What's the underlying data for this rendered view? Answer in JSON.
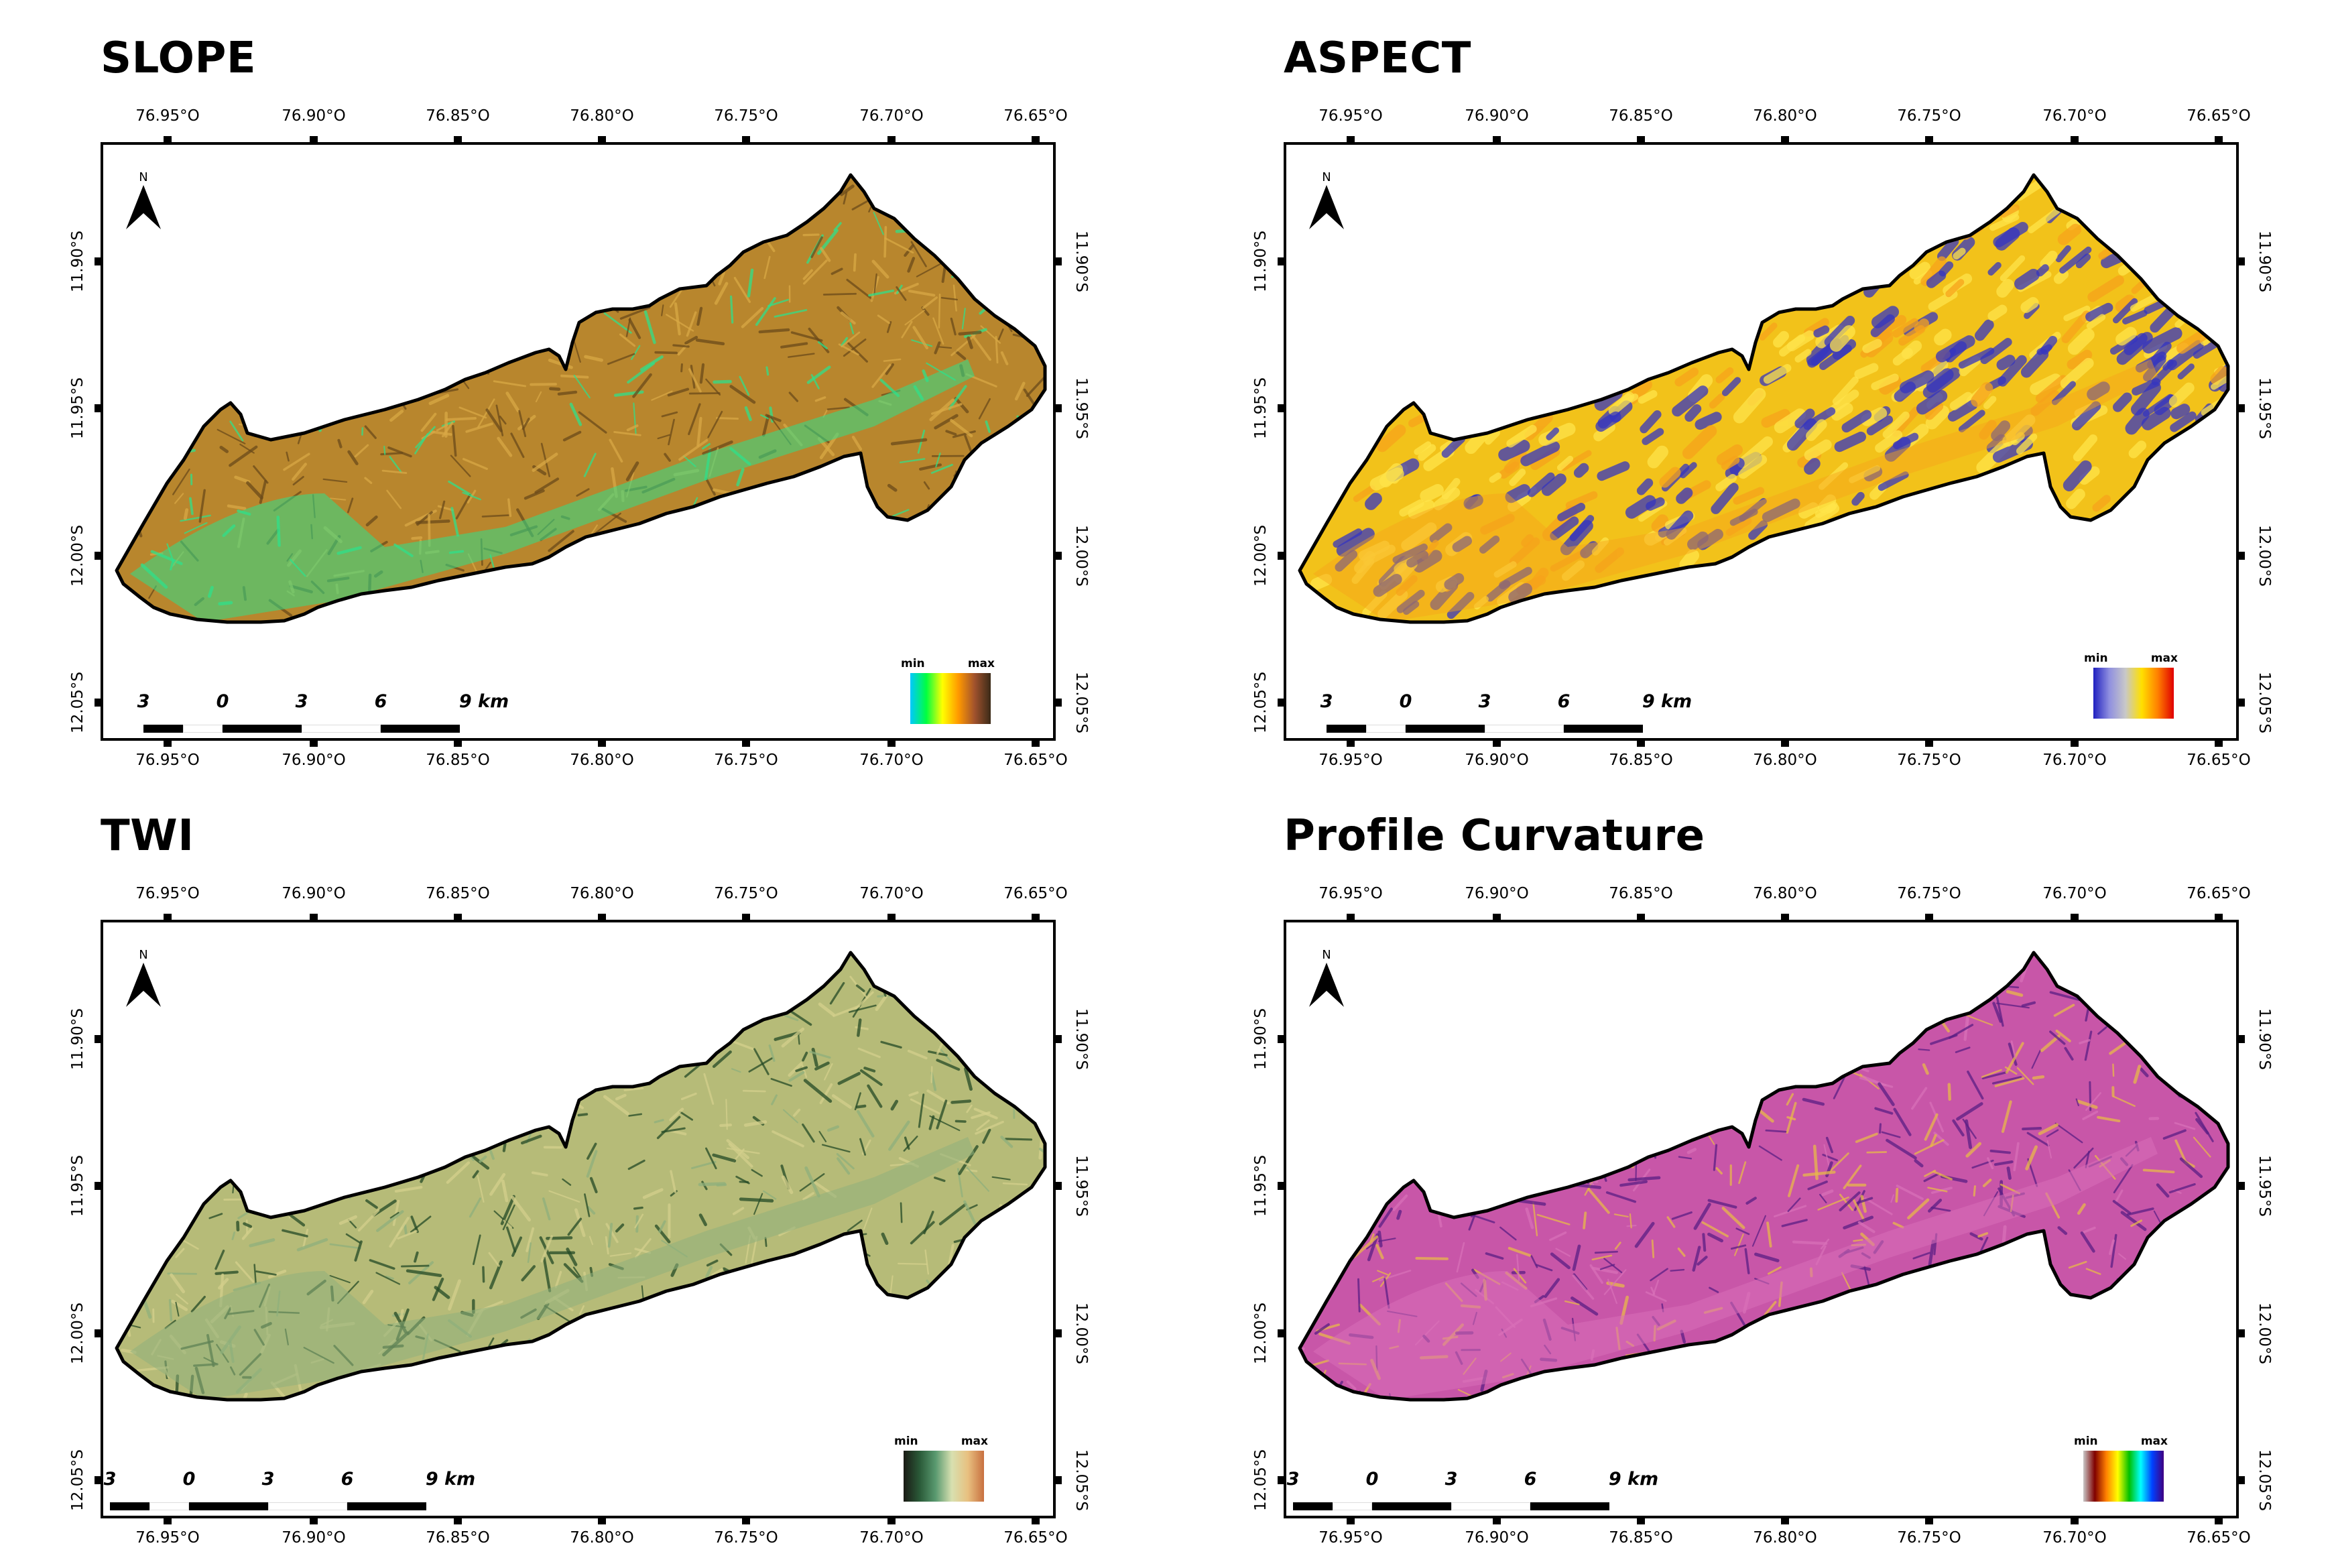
{
  "panels": [
    {
      "id": "slope",
      "title": "SLOPE",
      "legend": {
        "min": "min",
        "max": "max",
        "colors": [
          "#00c8ff",
          "#00ff40",
          "#ffff00",
          "#ff9800",
          "#a0522d",
          "#3a2a18"
        ]
      },
      "map_colors": {
        "base": "#b8862d",
        "light": "#d9a845",
        "dark": "#6b4a1a",
        "flat": "#2fe08a"
      }
    },
    {
      "id": "aspect",
      "title": "ASPECT",
      "legend": {
        "min": "min",
        "max": "max",
        "colors": [
          "#2020c0",
          "#9090e0",
          "#c8c8c8",
          "#ffe000",
          "#ff8000",
          "#e00000"
        ]
      },
      "map_colors": {
        "base": "#f2c21a",
        "light": "#ffe44a",
        "dark": "#3535c0",
        "flat": "#f7a31b"
      }
    },
    {
      "id": "twi",
      "title": "TWI",
      "legend": {
        "min": "min",
        "max": "max",
        "colors": [
          "#1a1a14",
          "#2a5a38",
          "#5a9a70",
          "#d8e0b0",
          "#e8c080",
          "#c87040"
        ]
      },
      "map_colors": {
        "base": "#b6bb78",
        "light": "#d4d08c",
        "dark": "#244a26",
        "flat": "#8fb07c"
      }
    },
    {
      "id": "profile-curvature",
      "title": "Profile Curvature",
      "legend": {
        "min": "min",
        "max": "max",
        "colors": [
          "#c8c8c8",
          "#800000",
          "#ff8000",
          "#ffff00",
          "#00c000",
          "#00ffff",
          "#0040ff",
          "#400080"
        ]
      },
      "map_colors": {
        "base": "#c856a8",
        "light": "#e8b84a",
        "dark": "#5b1f85",
        "flat": "#d870b8"
      }
    }
  ],
  "axes": {
    "lon_labels": [
      "76.95°O",
      "76.90°O",
      "76.85°O",
      "76.80°O",
      "76.75°O",
      "76.70°O",
      "76.65°O"
    ],
    "lat_labels": [
      "11.90°S",
      "11.95°S",
      "12.00°S",
      "12.05°S"
    ]
  },
  "scale_bar": {
    "labels": [
      "3",
      "0",
      "3",
      "6",
      "9 km"
    ]
  },
  "north_arrow": {
    "label": "N"
  }
}
